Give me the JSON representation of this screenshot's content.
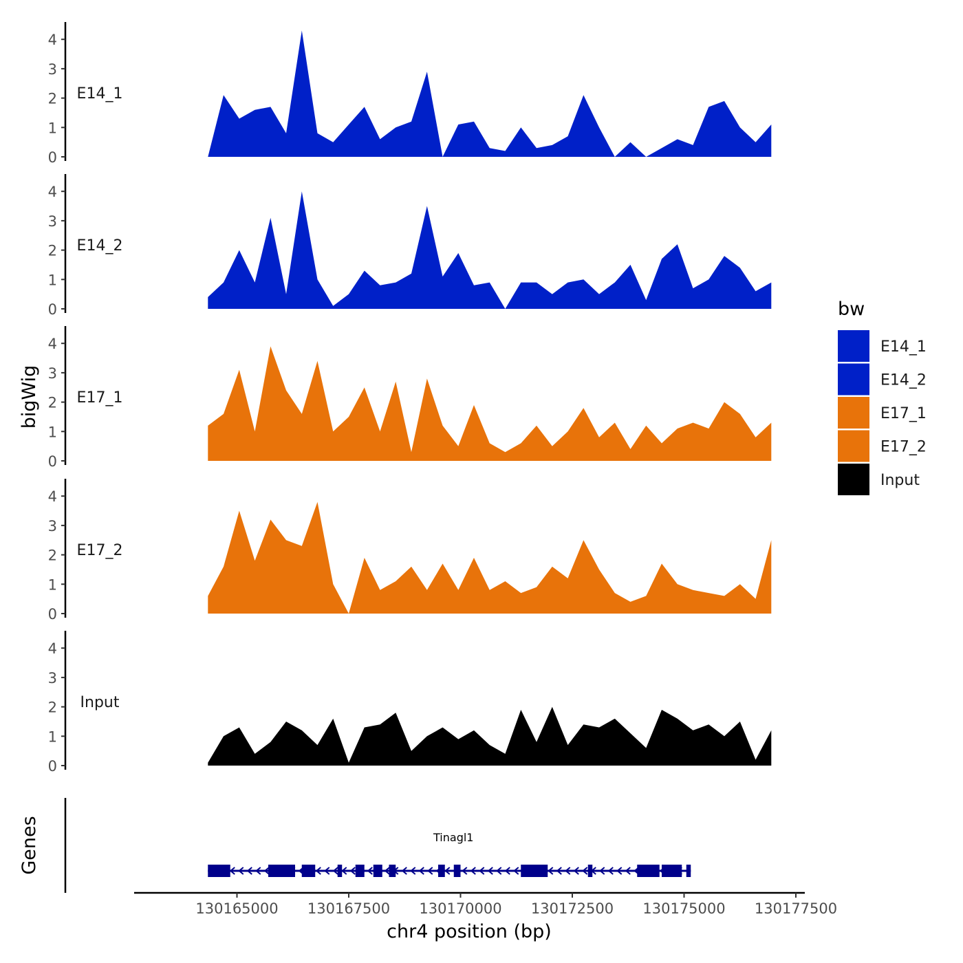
{
  "chart_data": {
    "type": "area",
    "title": "",
    "xlabel": "chr4 position (bp)",
    "ylabel": "bigWig",
    "genes_label": "Genes",
    "xlim": [
      130162700,
      130177700
    ],
    "ylim": [
      0,
      4.5
    ],
    "x_ticks": [
      130165000,
      130167500,
      130170000,
      130172500,
      130175000,
      130177500
    ],
    "x_tick_labels": [
      "130165000",
      "130167500",
      "130170000",
      "130172500",
      "130175000",
      "130177500"
    ],
    "y_ticks": [
      0,
      1,
      2,
      3,
      4
    ],
    "y_tick_labels": [
      "0",
      "1",
      "2",
      "3",
      "4"
    ],
    "x": [
      130164350,
      130164700,
      130165050,
      130165400,
      130165750,
      130166100,
      130166450,
      130166800,
      130167150,
      130167500,
      130167850,
      130168200,
      130168550,
      130168900,
      130169250,
      130169600,
      130169950,
      130170300,
      130170650,
      130171000,
      130171350,
      130171700,
      130172050,
      130172400,
      130172750,
      130173100,
      130173450,
      130173800,
      130174150,
      130174500,
      130174850,
      130175200,
      130175550,
      130175900,
      130176250,
      130176600,
      130176950
    ],
    "series": [
      {
        "name": "E14_1",
        "color": "#0020c8",
        "values": [
          0,
          2.1,
          1.3,
          1.6,
          1.7,
          0.8,
          4.3,
          0.8,
          0.5,
          1.1,
          1.7,
          0.6,
          1.0,
          1.2,
          2.9,
          0,
          1.1,
          1.2,
          0.3,
          0.2,
          1.0,
          0.3,
          0.4,
          0.7,
          2.1,
          1.0,
          0,
          0.5,
          0,
          0.3,
          0.6,
          0.4,
          1.7,
          1.9,
          1.0,
          0.5,
          1.1
        ]
      },
      {
        "name": "E14_2",
        "color": "#0020c8",
        "values": [
          0.4,
          0.9,
          2.0,
          0.9,
          3.1,
          0.5,
          4.0,
          1.0,
          0.1,
          0.5,
          1.3,
          0.8,
          0.9,
          1.2,
          3.5,
          1.1,
          1.9,
          0.8,
          0.9,
          0,
          0.9,
          0.9,
          0.5,
          0.9,
          1.0,
          0.5,
          0.9,
          1.5,
          0.3,
          1.7,
          2.2,
          0.7,
          1.0,
          1.8,
          1.4,
          0.6,
          0.9
        ]
      },
      {
        "name": "E17_1",
        "color": "#e8730a",
        "values": [
          1.2,
          1.6,
          3.1,
          1.0,
          3.9,
          2.4,
          1.6,
          3.4,
          1.0,
          1.5,
          2.5,
          1.0,
          2.7,
          0.3,
          2.8,
          1.2,
          0.5,
          1.9,
          0.6,
          0.3,
          0.6,
          1.2,
          0.5,
          1.0,
          1.8,
          0.8,
          1.3,
          0.4,
          1.2,
          0.6,
          1.1,
          1.3,
          1.1,
          2.0,
          1.6,
          0.8,
          1.3
        ]
      },
      {
        "name": "E17_2",
        "color": "#e8730a",
        "values": [
          0.6,
          1.6,
          3.5,
          1.8,
          3.2,
          2.5,
          2.3,
          3.8,
          1.0,
          0,
          1.9,
          0.8,
          1.1,
          1.6,
          0.8,
          1.7,
          0.8,
          1.9,
          0.8,
          1.1,
          0.7,
          0.9,
          1.6,
          1.2,
          2.5,
          1.5,
          0.7,
          0.4,
          0.6,
          1.7,
          1.0,
          0.8,
          0.7,
          0.6,
          1.0,
          0.5,
          2.5
        ]
      },
      {
        "name": "Input",
        "color": "#000000",
        "values": [
          0.1,
          1.0,
          1.3,
          0.4,
          0.8,
          1.5,
          1.2,
          0.7,
          1.6,
          0.1,
          1.3,
          1.4,
          1.8,
          0.5,
          1.0,
          1.3,
          0.9,
          1.2,
          0.7,
          0.4,
          1.9,
          0.8,
          2.0,
          0.7,
          1.4,
          1.3,
          1.6,
          1.1,
          0.6,
          1.9,
          1.6,
          1.2,
          1.4,
          1.0,
          1.5,
          0.2,
          1.2
        ]
      }
    ],
    "legend": {
      "title": "bw",
      "position": "right"
    },
    "genes": [
      {
        "name": "Tinagl1",
        "start": 130164350,
        "end": 130175150,
        "strand": "-",
        "exons": [
          [
            130164350,
            130164850
          ],
          [
            130165700,
            130166300
          ],
          [
            130166450,
            130166750
          ],
          [
            130167250,
            130167350
          ],
          [
            130167650,
            130167850
          ],
          [
            130168050,
            130168250
          ],
          [
            130168400,
            130168550
          ],
          [
            130169500,
            130169650
          ],
          [
            130169850,
            130170000
          ],
          [
            130171350,
            130171950
          ],
          [
            130172850,
            130172950
          ],
          [
            130173950,
            130174450
          ],
          [
            130174500,
            130174950
          ],
          [
            130175050,
            130175150
          ]
        ]
      }
    ]
  }
}
